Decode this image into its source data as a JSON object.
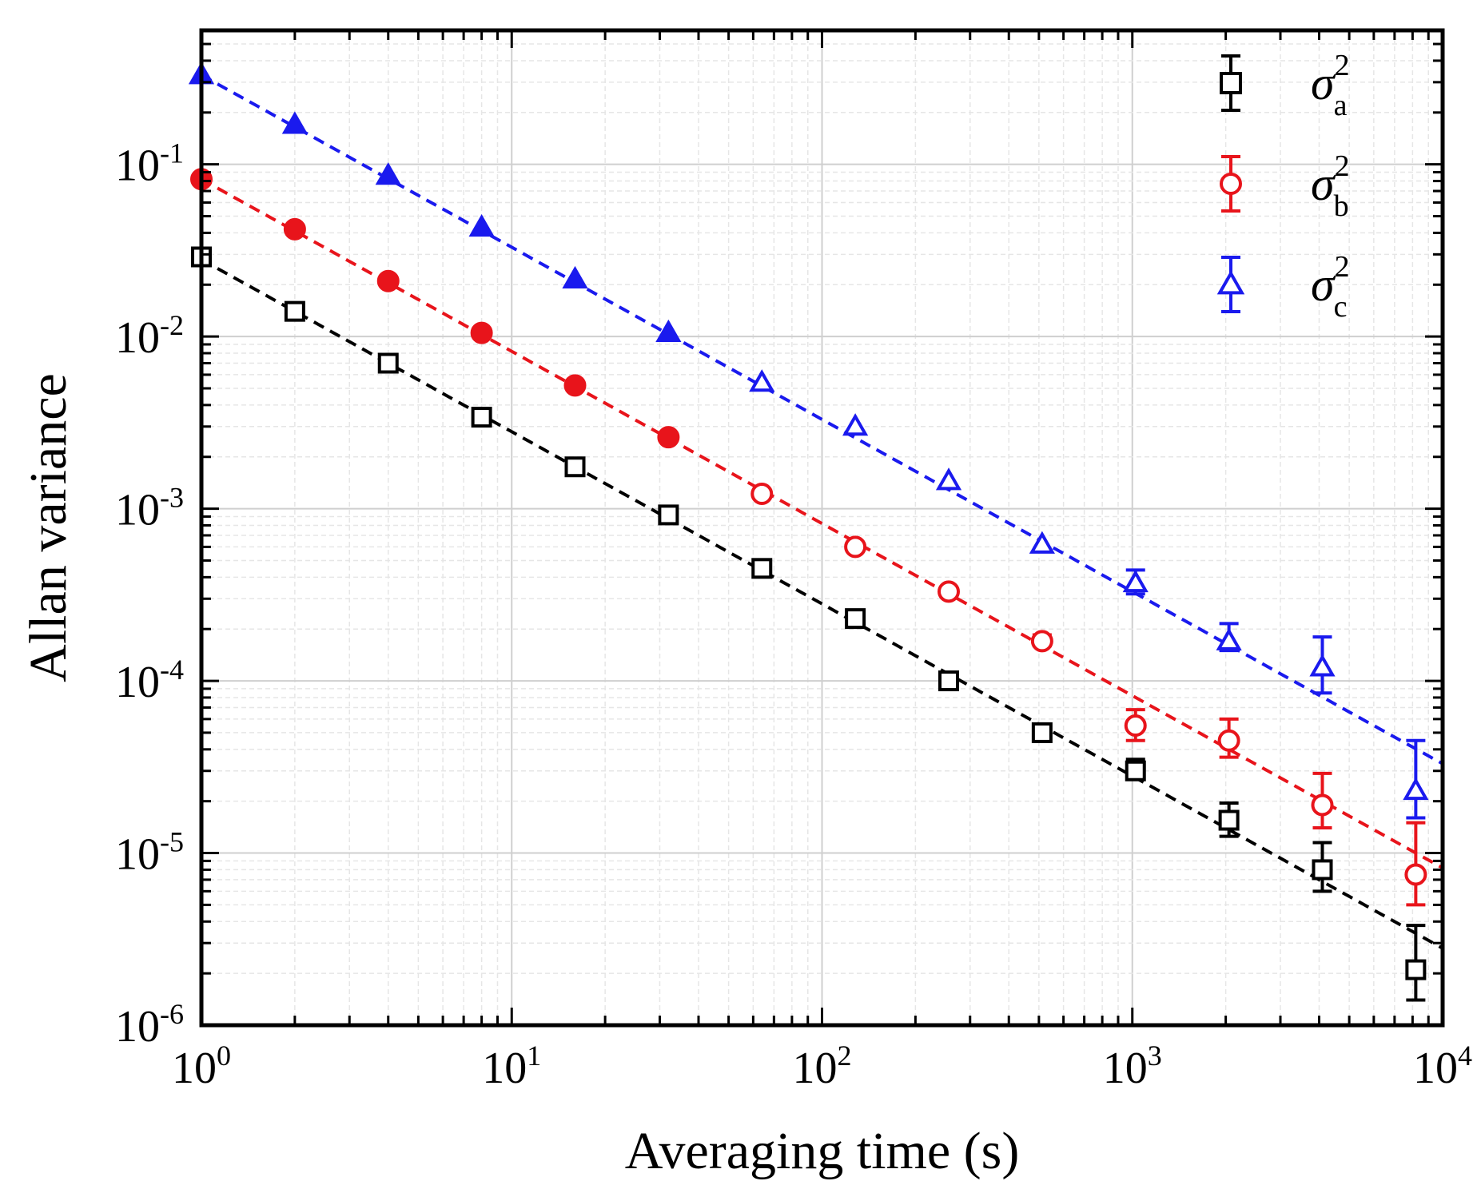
{
  "chart_data": {
    "type": "scatter",
    "xlabel": "Averaging time (s)",
    "ylabel": "Allan variance",
    "xscale": "log",
    "yscale": "log",
    "xlim": [
      1,
      10000
    ],
    "ylim": [
      1e-06,
      0.6
    ],
    "grid": true,
    "legend_position": "top-right",
    "x_ticks": [
      {
        "base": "10",
        "exp": "0",
        "value": 1
      },
      {
        "base": "10",
        "exp": "1",
        "value": 10
      },
      {
        "base": "10",
        "exp": "2",
        "value": 100
      },
      {
        "base": "10",
        "exp": "3",
        "value": 1000
      },
      {
        "base": "10",
        "exp": "4",
        "value": 10000
      }
    ],
    "y_ticks": [
      {
        "base": "10",
        "exp": "-6",
        "value": 1e-06
      },
      {
        "base": "10",
        "exp": "-5",
        "value": 1e-05
      },
      {
        "base": "10",
        "exp": "-4",
        "value": 0.0001
      },
      {
        "base": "10",
        "exp": "-3",
        "value": 0.001
      },
      {
        "base": "10",
        "exp": "-2",
        "value": 0.01
      },
      {
        "base": "10",
        "exp": "-1",
        "value": 0.1
      }
    ],
    "series": [
      {
        "name": "σ",
        "sub": "a",
        "sup": "2",
        "color": "#000000",
        "marker": "square",
        "fit": {
          "coef": 0.028,
          "slope": -1
        },
        "points": [
          {
            "x": 1,
            "y": 0.029,
            "lo": 0.029,
            "hi": 0.029
          },
          {
            "x": 2,
            "y": 0.014,
            "lo": 0.014,
            "hi": 0.014
          },
          {
            "x": 4,
            "y": 0.007,
            "lo": 0.007,
            "hi": 0.007
          },
          {
            "x": 8,
            "y": 0.0034,
            "lo": 0.0034,
            "hi": 0.0034
          },
          {
            "x": 16,
            "y": 0.00175,
            "lo": 0.00175,
            "hi": 0.00175
          },
          {
            "x": 32,
            "y": 0.00092,
            "lo": 0.00092,
            "hi": 0.00092
          },
          {
            "x": 64,
            "y": 0.00045,
            "lo": 0.00045,
            "hi": 0.00045
          },
          {
            "x": 128,
            "y": 0.00023,
            "lo": 0.00023,
            "hi": 0.00023
          },
          {
            "x": 256,
            "y": 0.0001,
            "lo": 0.0001,
            "hi": 0.0001
          },
          {
            "x": 512,
            "y": 5e-05,
            "lo": 5e-05,
            "hi": 5e-05
          },
          {
            "x": 1024,
            "y": 3e-05,
            "lo": 2.7e-05,
            "hi": 3.5e-05
          },
          {
            "x": 2048,
            "y": 1.55e-05,
            "lo": 1.25e-05,
            "hi": 1.95e-05
          },
          {
            "x": 4096,
            "y": 8e-06,
            "lo": 6e-06,
            "hi": 1.15e-05
          },
          {
            "x": 8192,
            "y": 2.1e-06,
            "lo": 1.4e-06,
            "hi": 3.8e-06
          }
        ]
      },
      {
        "name": "σ",
        "sub": "b",
        "sup": "2",
        "color": "#e8141b",
        "marker": "circle",
        "fit": {
          "coef": 0.082,
          "slope": -1
        },
        "points": [
          {
            "x": 1,
            "y": 0.082,
            "lo": 0.082,
            "hi": 0.082
          },
          {
            "x": 2,
            "y": 0.042,
            "lo": 0.042,
            "hi": 0.042
          },
          {
            "x": 4,
            "y": 0.021,
            "lo": 0.021,
            "hi": 0.021
          },
          {
            "x": 8,
            "y": 0.0105,
            "lo": 0.0105,
            "hi": 0.0105
          },
          {
            "x": 16,
            "y": 0.0052,
            "lo": 0.0052,
            "hi": 0.0052
          },
          {
            "x": 32,
            "y": 0.0026,
            "lo": 0.0026,
            "hi": 0.0026
          },
          {
            "x": 64,
            "y": 0.00122,
            "lo": 0.00122,
            "hi": 0.00122
          },
          {
            "x": 128,
            "y": 0.0006,
            "lo": 0.0006,
            "hi": 0.0006
          },
          {
            "x": 256,
            "y": 0.00033,
            "lo": 0.00033,
            "hi": 0.00033
          },
          {
            "x": 512,
            "y": 0.00017,
            "lo": 0.00016,
            "hi": 0.000185
          },
          {
            "x": 1024,
            "y": 5.5e-05,
            "lo": 4.5e-05,
            "hi": 6.8e-05
          },
          {
            "x": 2048,
            "y": 4.5e-05,
            "lo": 3.6e-05,
            "hi": 6e-05
          },
          {
            "x": 4096,
            "y": 1.9e-05,
            "lo": 1.4e-05,
            "hi": 2.9e-05
          },
          {
            "x": 8192,
            "y": 7.5e-06,
            "lo": 5e-06,
            "hi": 1.5e-05
          }
        ]
      },
      {
        "name": "σ",
        "sub": "c",
        "sup": "2",
        "color": "#1a1aee",
        "marker": "triangle",
        "fit": {
          "coef": 0.33,
          "slope": -1
        },
        "points": [
          {
            "x": 1,
            "y": 0.33,
            "lo": 0.33,
            "hi": 0.33
          },
          {
            "x": 2,
            "y": 0.17,
            "lo": 0.17,
            "hi": 0.17
          },
          {
            "x": 4,
            "y": 0.086,
            "lo": 0.086,
            "hi": 0.086
          },
          {
            "x": 8,
            "y": 0.043,
            "lo": 0.043,
            "hi": 0.043
          },
          {
            "x": 16,
            "y": 0.0215,
            "lo": 0.0215,
            "hi": 0.0215
          },
          {
            "x": 32,
            "y": 0.0105,
            "lo": 0.0105,
            "hi": 0.0105
          },
          {
            "x": 64,
            "y": 0.0054,
            "lo": 0.0054,
            "hi": 0.0054
          },
          {
            "x": 128,
            "y": 0.003,
            "lo": 0.003,
            "hi": 0.003
          },
          {
            "x": 256,
            "y": 0.00145,
            "lo": 0.00145,
            "hi": 0.00145
          },
          {
            "x": 512,
            "y": 0.00062,
            "lo": 0.00062,
            "hi": 0.00062
          },
          {
            "x": 1024,
            "y": 0.00037,
            "lo": 0.00032,
            "hi": 0.00044
          },
          {
            "x": 2048,
            "y": 0.00017,
            "lo": 0.00015,
            "hi": 0.000215
          },
          {
            "x": 4096,
            "y": 0.00012,
            "lo": 8.5e-05,
            "hi": 0.00018
          },
          {
            "x": 8192,
            "y": 2.3e-05,
            "lo": 1.6e-05,
            "hi": 4.5e-05
          }
        ]
      }
    ]
  }
}
